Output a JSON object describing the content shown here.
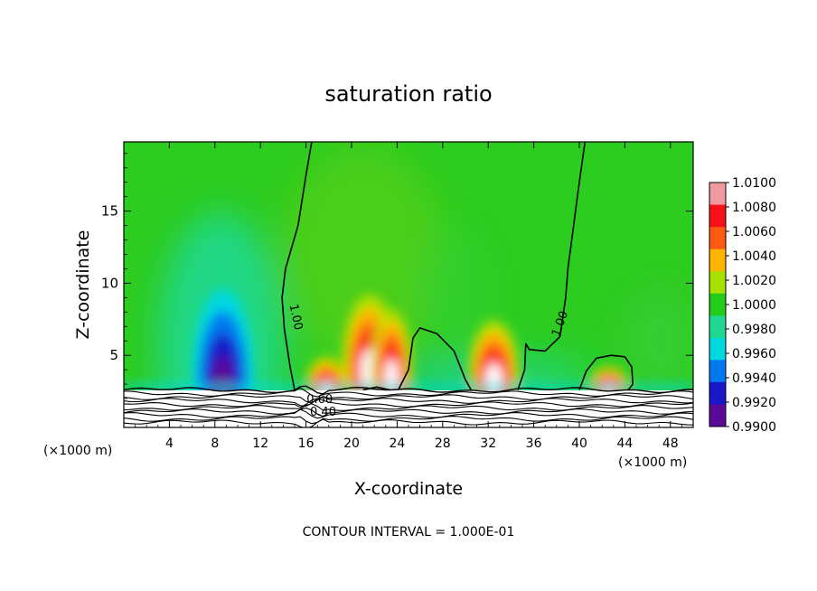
{
  "chart_data": {
    "type": "heatmap",
    "title": "saturation ratio",
    "xlabel": "X-coordinate",
    "ylabel": "Z-coordinate",
    "x_unit": "(×1000 m)",
    "x_unit_right": "(×1000 m)",
    "footer": "CONTOUR INTERVAL = 1.000E-01",
    "xlim": [
      0,
      50
    ],
    "ylim": [
      0,
      19.8
    ],
    "x_ticks": [
      4,
      8,
      12,
      16,
      20,
      24,
      28,
      32,
      36,
      40,
      44,
      48
    ],
    "y_ticks": [
      5,
      10,
      15
    ],
    "colorbar": {
      "levels": [
        "1.0100",
        "1.0080",
        "1.0060",
        "1.0040",
        "1.0020",
        "1.0000",
        "0.9980",
        "0.9960",
        "0.9940",
        "0.9920",
        "0.9900"
      ],
      "colors": [
        "#f09aa0",
        "#f81018",
        "#ff5a14",
        "#ffb400",
        "#a8e000",
        "#24cc1a",
        "#20d890",
        "#00d8e0",
        "#0078f0",
        "#1818c8",
        "#5a0a98"
      ]
    },
    "contour_labels": [
      {
        "text": "1.00",
        "x": 14.8,
        "z": 7.6
      },
      {
        "text": "1.00",
        "x": 38.6,
        "z": 7.1
      },
      {
        "text": "0.60",
        "x": 17.2,
        "z": 1.7
      },
      {
        "text": "0.40",
        "x": 17.5,
        "z": 0.8
      }
    ],
    "contour_1_00": [
      [
        [
          16.5,
          19.8
        ],
        [
          16.0,
          17.5
        ],
        [
          15.3,
          14.0
        ],
        [
          14.2,
          11.0
        ],
        [
          13.9,
          9.0
        ],
        [
          14.1,
          6.8
        ],
        [
          14.6,
          4.2
        ],
        [
          15.0,
          2.6
        ]
      ],
      [
        [
          40.5,
          19.8
        ],
        [
          40.0,
          17.0
        ],
        [
          39.5,
          14.0
        ],
        [
          39.0,
          11.0
        ],
        [
          38.8,
          9.0
        ],
        [
          38.3,
          6.3
        ],
        [
          37.0,
          5.3
        ],
        [
          35.6,
          5.4
        ],
        [
          35.3,
          5.8
        ],
        [
          35.2,
          4.0
        ],
        [
          34.6,
          2.6
        ]
      ],
      [
        [
          40.0,
          2.6
        ],
        [
          40.6,
          3.9
        ],
        [
          41.5,
          4.8
        ],
        [
          42.8,
          5.0
        ],
        [
          44.0,
          4.9
        ],
        [
          44.6,
          4.2
        ],
        [
          44.7,
          3.0
        ],
        [
          44.3,
          2.6
        ]
      ],
      [
        [
          24.1,
          2.6
        ],
        [
          25.0,
          4.0
        ],
        [
          25.4,
          6.2
        ],
        [
          26.0,
          6.9
        ],
        [
          27.5,
          6.5
        ],
        [
          29.0,
          5.3
        ],
        [
          30.0,
          3.3
        ],
        [
          30.5,
          2.6
        ]
      ],
      [
        [
          21.0,
          2.6
        ],
        [
          22.2,
          2.8
        ],
        [
          23.4,
          2.6
        ]
      ]
    ],
    "hotspots": [
      {
        "x": 8.7,
        "z": 3.6,
        "rx": 2.7,
        "rz": 6.0,
        "value": 0.99,
        "tone": "dry"
      },
      {
        "x": 17.8,
        "z": 2.9,
        "rx": 1.8,
        "rz": 2.0,
        "value": 1.008,
        "tone": "moist"
      },
      {
        "x": 21.6,
        "z": 4.6,
        "rx": 2.4,
        "rz": 4.6,
        "value": 1.01,
        "tone": "moist"
      },
      {
        "x": 23.5,
        "z": 4.0,
        "rx": 1.8,
        "rz": 4.2,
        "value": 1.008,
        "tone": "moist"
      },
      {
        "x": 32.5,
        "z": 3.8,
        "rx": 2.2,
        "rz": 3.6,
        "value": 1.008,
        "tone": "moist"
      },
      {
        "x": 42.6,
        "z": 2.9,
        "rx": 1.7,
        "rz": 1.3,
        "value": 1.006,
        "tone": "moist"
      }
    ],
    "grid": false,
    "legend_position": "right"
  }
}
